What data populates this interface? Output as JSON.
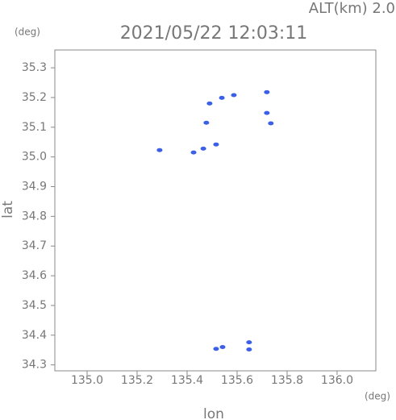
{
  "chart_data": {
    "type": "scatter",
    "annotation": "ALT(km) 2.0",
    "title": "2021/05/22 12:03:11",
    "y_unit": "(deg)",
    "x_unit": "(deg)",
    "xlabel": "lon",
    "ylabel": "lat",
    "color": "#3b5fe6",
    "x": [
      135.29,
      135.426,
      135.465,
      135.516,
      135.477,
      135.49,
      135.539,
      135.587,
      135.719,
      135.719,
      135.735,
      135.516,
      135.542,
      135.648,
      135.648
    ],
    "values": [
      35.023,
      35.015,
      35.028,
      35.042,
      35.115,
      35.18,
      35.199,
      35.208,
      35.218,
      35.148,
      35.113,
      34.354,
      34.36,
      34.376,
      34.352
    ],
    "xlim": [
      134.871,
      136.155
    ],
    "ylim": [
      34.28,
      35.36
    ],
    "xticks": [
      {
        "value": 135.0,
        "label": "135.0"
      },
      135.2,
      135.4,
      135.6,
      135.8,
      {
        "value": 136.0,
        "label": "136.0"
      }
    ],
    "yticks": [
      34.3,
      34.4,
      34.5,
      34.6,
      34.7,
      34.8,
      34.9,
      {
        "value": 35.0,
        "label": "35.0"
      },
      35.1,
      35.2,
      35.3
    ]
  }
}
